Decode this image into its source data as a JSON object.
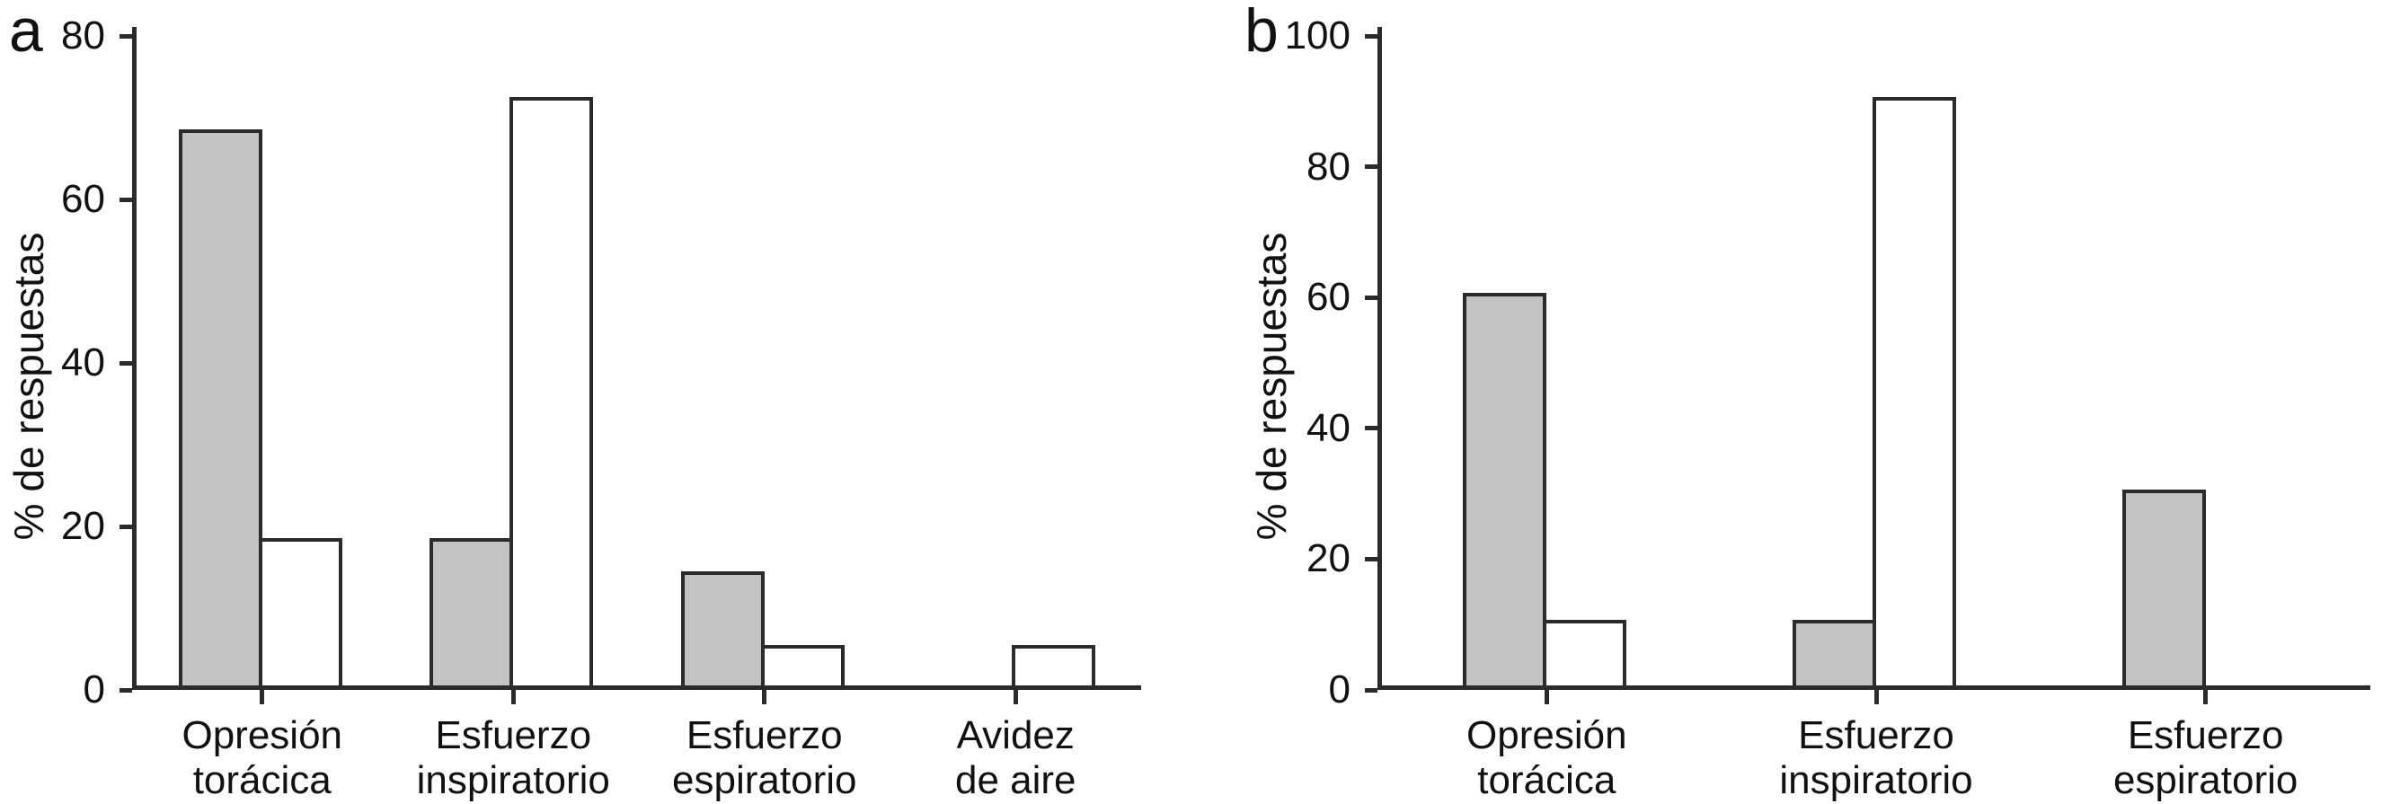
{
  "figure": {
    "background": "#ffffff",
    "stroke_color": "#2b2b2b",
    "text_color": "#111111"
  },
  "chart_data": [
    {
      "type": "bar",
      "panel_label": "a",
      "title": "",
      "xlabel": "",
      "ylabel": "% de respuestas",
      "ylim": [
        0,
        80
      ],
      "yticks": [
        0,
        20,
        40,
        60,
        80
      ],
      "grid": false,
      "legend": "none",
      "categories": [
        "Opresión\ntorácica",
        "Esfuerzo\ninspiratorio",
        "Esfuerzo\nespiratorio",
        "Avidez\nde aire"
      ],
      "series": [
        {
          "name": "serie-gris",
          "fill": "#c3c3c5",
          "values": [
            68,
            18,
            14,
            0
          ]
        },
        {
          "name": "serie-blanca",
          "fill": "#ffffff",
          "values": [
            18,
            72,
            5,
            5
          ]
        }
      ]
    },
    {
      "type": "bar",
      "panel_label": "b",
      "title": "",
      "xlabel": "",
      "ylabel": "% de respuestas",
      "ylim": [
        0,
        100
      ],
      "yticks": [
        0,
        20,
        40,
        60,
        80,
        100
      ],
      "grid": false,
      "legend": "none",
      "categories": [
        "Opresión\ntorácica",
        "Esfuerzo\ninspiratorio",
        "Esfuerzo\nespiratorio"
      ],
      "series": [
        {
          "name": "serie-gris",
          "fill": "#c3c3c5",
          "values": [
            60,
            10,
            30
          ]
        },
        {
          "name": "serie-blanca",
          "fill": "#ffffff",
          "values": [
            10,
            90,
            0
          ]
        }
      ]
    }
  ]
}
